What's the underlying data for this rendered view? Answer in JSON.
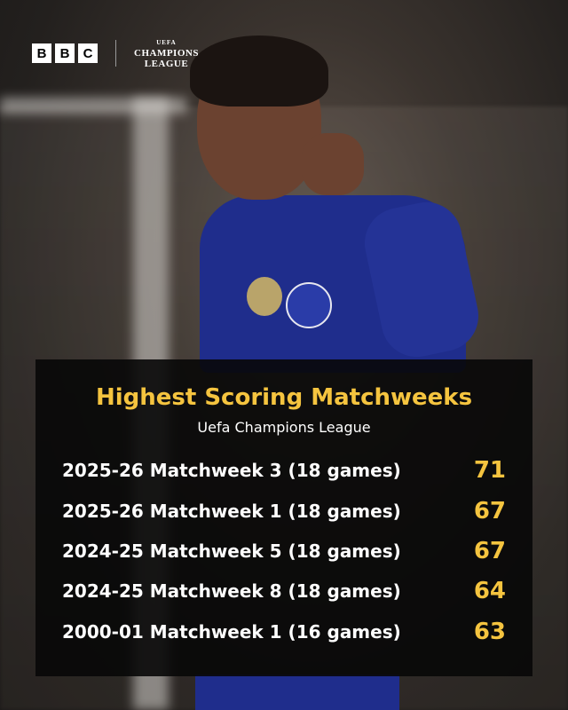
{
  "brand": {
    "bbc_letters": [
      "B",
      "B",
      "C"
    ],
    "competition_logo_top": "UEFA",
    "competition_logo_line1": "CHAMPIONS",
    "competition_logo_line2": "LEAGUE"
  },
  "colors": {
    "accent": "#f5c43f",
    "panel": "#080808",
    "kit": "#1f2d8c"
  },
  "panel": {
    "title": "Highest Scoring Matchweeks",
    "subtitle": "Uefa Champions League",
    "rows": [
      {
        "label": "2025-26 Matchweek 3 (18 games)",
        "goals": "71"
      },
      {
        "label": "2025-26 Matchweek 1 (18 games)",
        "goals": "67"
      },
      {
        "label": "2024-25 Matchweek 5 (18 games)",
        "goals": "67"
      },
      {
        "label": "2024-25 Matchweek 8 (18 games)",
        "goals": "64"
      },
      {
        "label": "2000-01 Matchweek 1 (16 games)",
        "goals": "63"
      }
    ]
  }
}
